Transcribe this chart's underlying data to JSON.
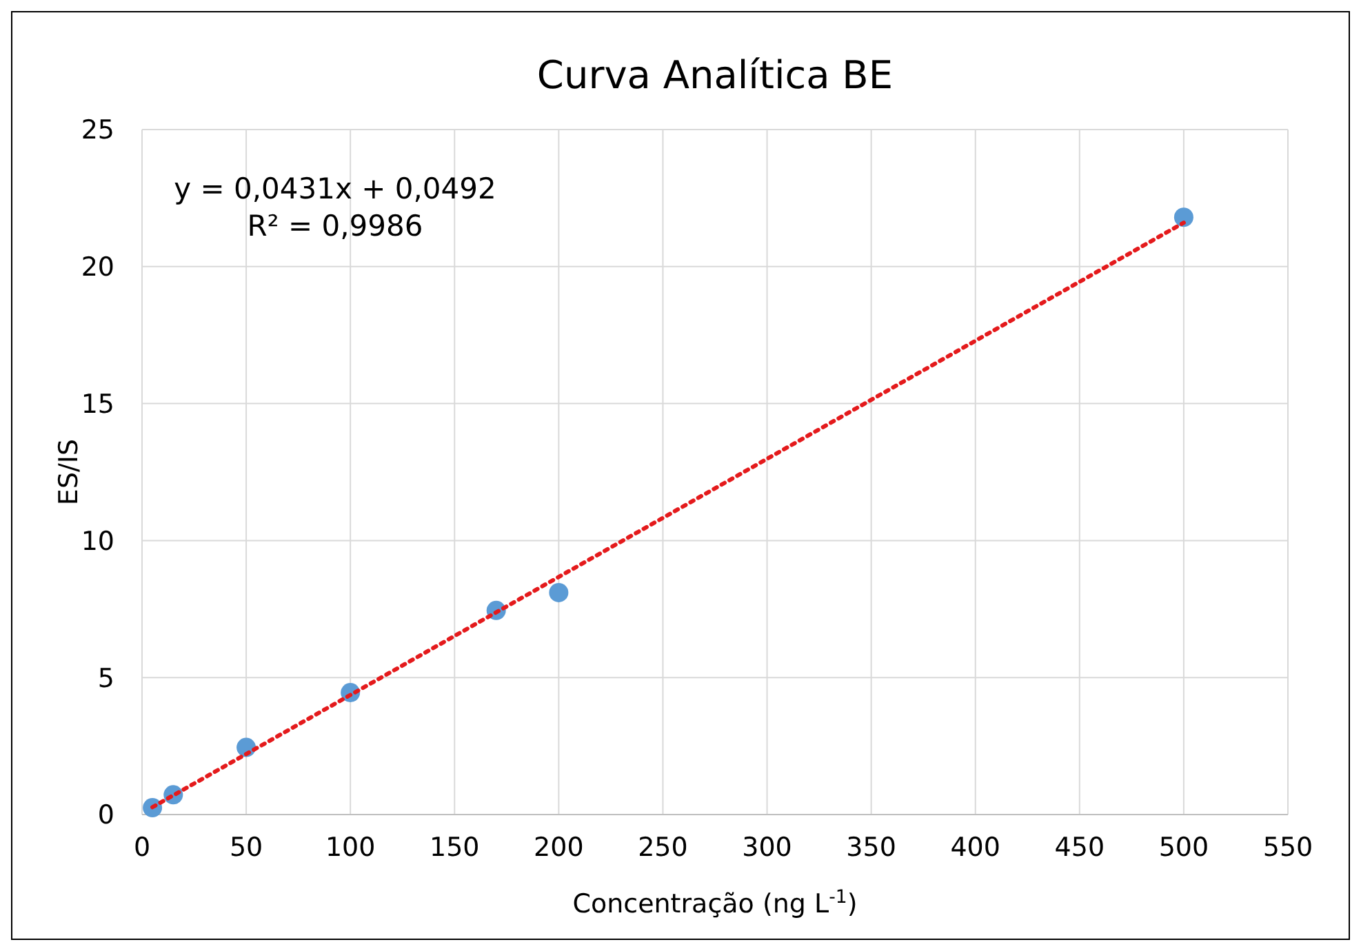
{
  "chart_data": {
    "type": "scatter",
    "title": "Curva Analítica BE",
    "xlabel": "Concentração (ng L$^{-1}$)",
    "ylabel": "ES/IS",
    "annotations": [
      "y = 0,0431x + 0,0492",
      "R² = 0,9986"
    ],
    "xlim": [
      0,
      550
    ],
    "xticks": [
      0,
      50,
      100,
      150,
      200,
      250,
      300,
      350,
      400,
      450,
      500,
      550
    ],
    "ylim": [
      0,
      25
    ],
    "yticks": [
      0,
      5,
      10,
      15,
      20,
      25
    ],
    "grid": true,
    "series": [
      {
        "color": "#5b9bd5",
        "marker": "circle",
        "x": [
          5,
          15,
          50,
          100,
          170,
          200,
          500
        ],
        "values": [
          0.25,
          0.72,
          2.45,
          4.45,
          7.45,
          8.1,
          21.8
        ]
      },
      {
        "type": "line",
        "color": "#e41a1c",
        "line_style": "dotted",
        "x": [
          5,
          500
        ],
        "values": [
          0.27,
          21.6
        ]
      }
    ]
  }
}
